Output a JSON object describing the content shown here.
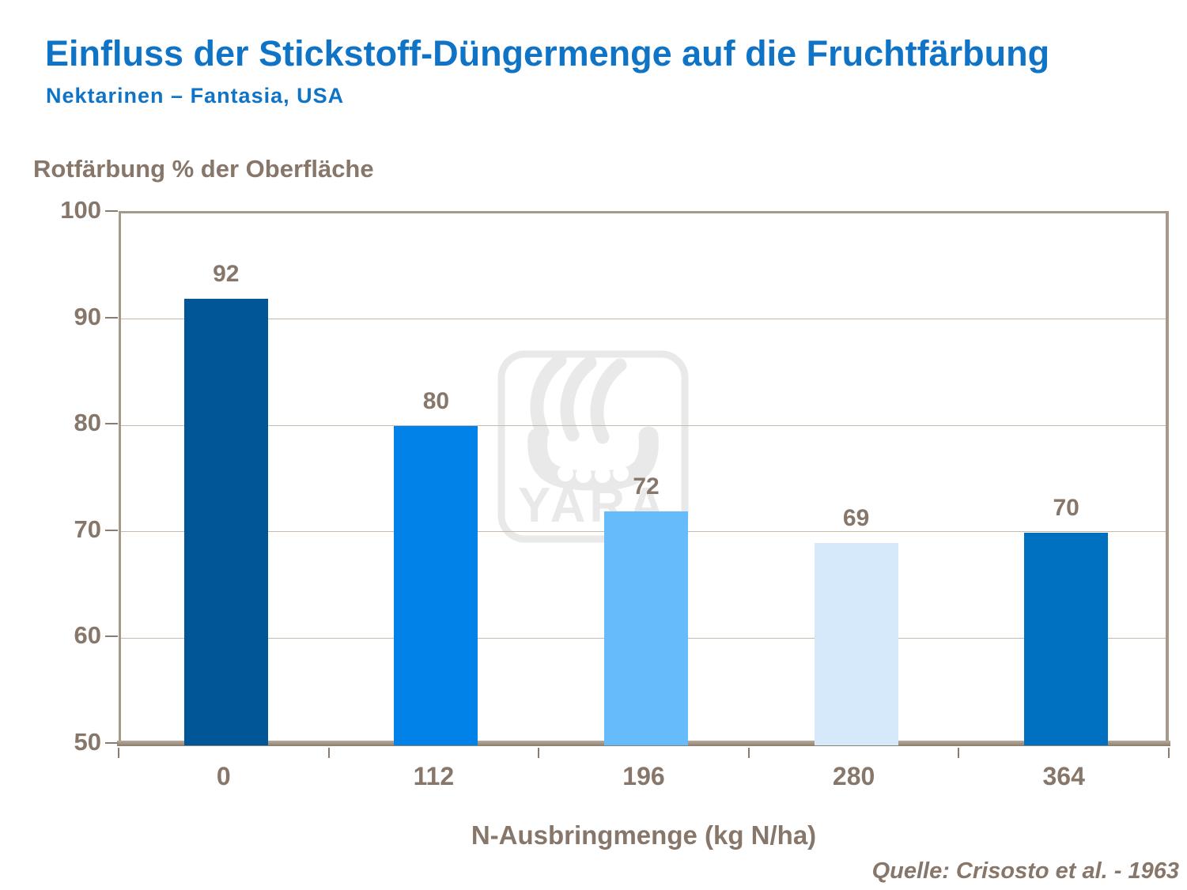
{
  "header": {
    "title": "Einfluss der Stickstoff-Düngermenge auf die Fruchtfärbung",
    "subtitle": "Nektarinen – Fantasia, USA"
  },
  "chart_data": {
    "type": "bar",
    "title": "Einfluss der Stickstoff-Düngermenge auf die Fruchtfärbung",
    "subtitle": "Nektarinen – Fantasia, USA",
    "categories": [
      "0",
      "112",
      "196",
      "280",
      "364"
    ],
    "values": [
      92,
      80,
      72,
      69,
      70
    ],
    "bar_colors": [
      "#005696",
      "#0182E8",
      "#66BBFB",
      "#D6E9FB",
      "#0070C0"
    ],
    "ylabel": "Rotfärbung % der Oberfläche",
    "xlabel": "N-Ausbringmenge (kg N/ha)",
    "ylim": [
      50,
      100
    ],
    "yticks": [
      50,
      60,
      70,
      80,
      90,
      100
    ],
    "grid": true,
    "legend": false
  },
  "source": {
    "text": "Quelle: Crisosto et al. - 1963"
  },
  "watermark": {
    "text": "YARA"
  },
  "colors": {
    "title_blue": "#0F73C6",
    "text_brown": "#87766A",
    "gridline": "#C7B9AB",
    "plot_border": "#A69987",
    "axis_dark": "#8B7D6E",
    "watermark_gray": "#E9E9E9"
  }
}
